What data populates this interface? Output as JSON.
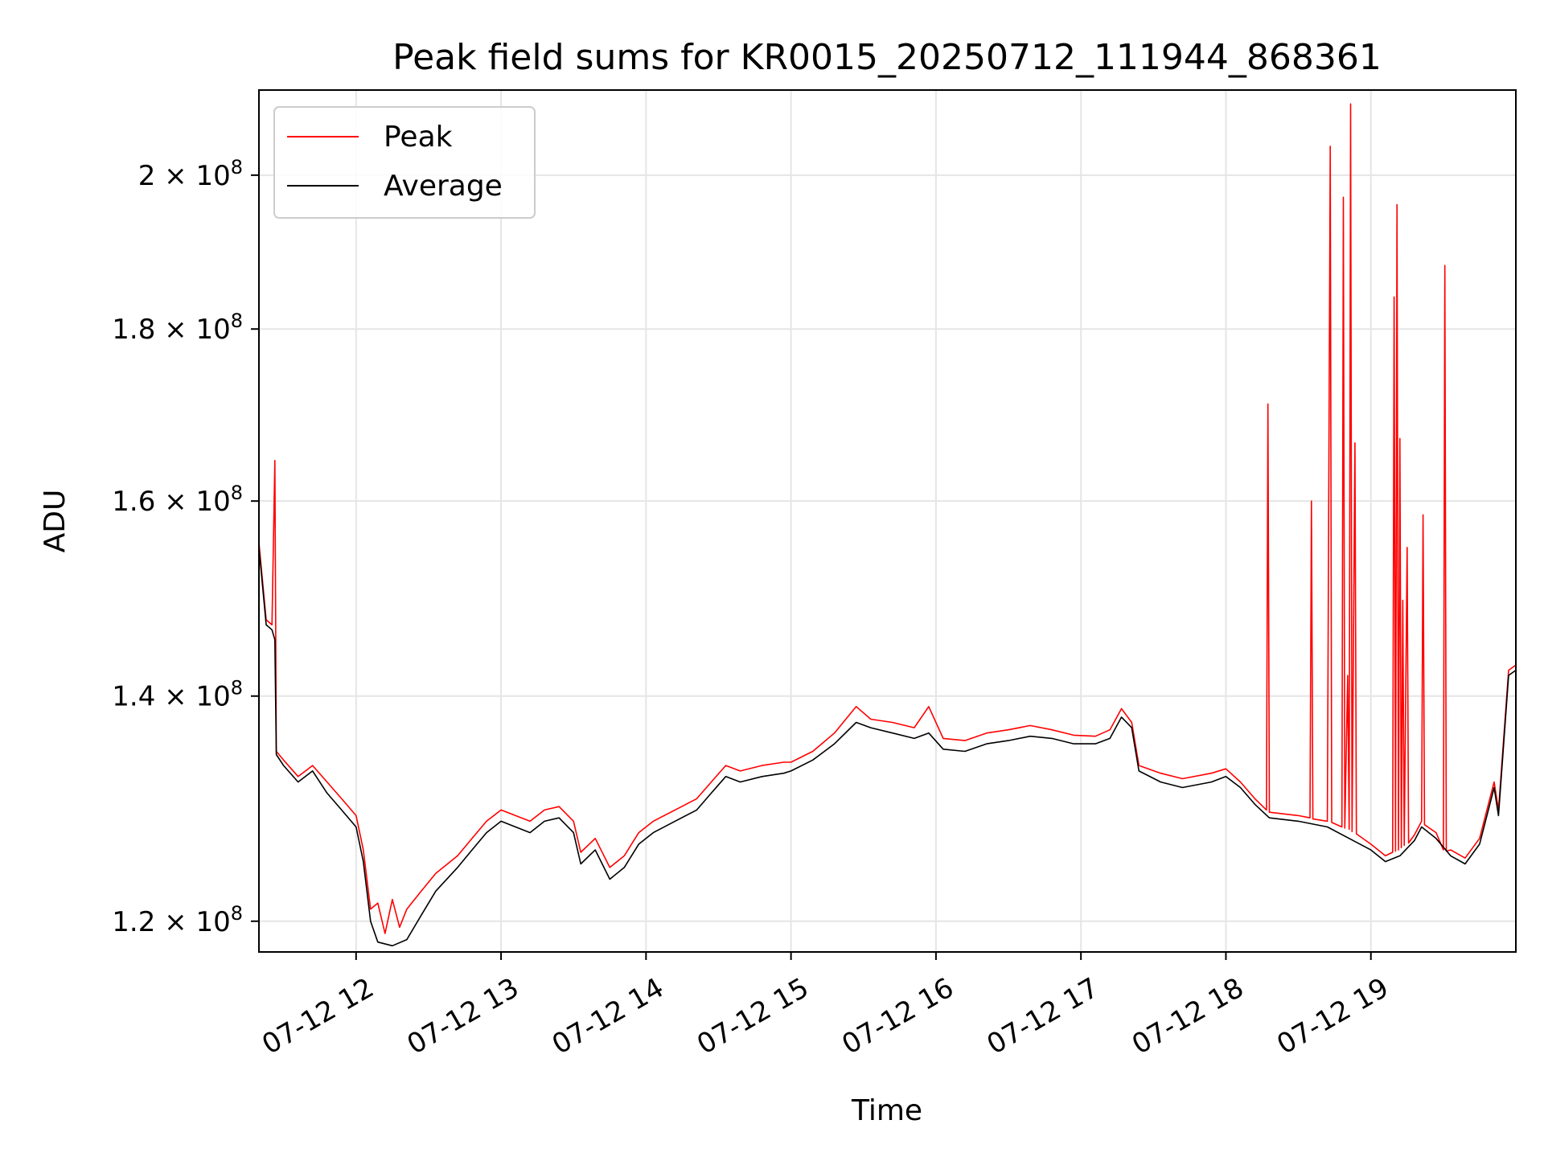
{
  "chart_data": {
    "type": "line",
    "title": "Peak field sums for KR0015_20250712_111944_868361",
    "xlabel": "Time",
    "ylabel": "ADU",
    "scale": {
      "x": "time",
      "y": "log"
    },
    "xlim_hours": [
      11.33,
      20.0
    ],
    "ylim": [
      117500000,
      212000000
    ],
    "grid": true,
    "legend_position": "upper-left",
    "x_ticks": [
      {
        "hour": 12,
        "label": "07-12 12"
      },
      {
        "hour": 13,
        "label": "07-12 13"
      },
      {
        "hour": 14,
        "label": "07-12 14"
      },
      {
        "hour": 15,
        "label": "07-12 15"
      },
      {
        "hour": 16,
        "label": "07-12 16"
      },
      {
        "hour": 17,
        "label": "07-12 17"
      },
      {
        "hour": 18,
        "label": "07-12 18"
      },
      {
        "hour": 19,
        "label": "07-12 19"
      }
    ],
    "y_ticks": [
      {
        "value": 120000000,
        "mantissa": "1.2",
        "exponent": "8"
      },
      {
        "value": 140000000,
        "mantissa": "1.4",
        "exponent": "8"
      },
      {
        "value": 160000000,
        "mantissa": "1.6",
        "exponent": "8"
      },
      {
        "value": 180000000,
        "mantissa": "1.8",
        "exponent": "8"
      },
      {
        "value": 200000000,
        "mantissa": "2",
        "exponent": "8"
      }
    ],
    "series": [
      {
        "name": "Average",
        "color": "#000000",
        "points": [
          [
            11.33,
            155000000
          ],
          [
            11.38,
            147000000
          ],
          [
            11.42,
            146500000
          ],
          [
            11.44,
            145500000
          ],
          [
            11.45,
            134500000
          ],
          [
            11.5,
            133500000
          ],
          [
            11.6,
            132000000
          ],
          [
            11.7,
            133000000
          ],
          [
            11.8,
            131000000
          ],
          [
            11.9,
            129500000
          ],
          [
            12.0,
            128000000
          ],
          [
            12.05,
            125000000
          ],
          [
            12.1,
            120000000
          ],
          [
            12.15,
            118300000
          ],
          [
            12.25,
            118000000
          ],
          [
            12.35,
            118500000
          ],
          [
            12.45,
            120500000
          ],
          [
            12.55,
            122500000
          ],
          [
            12.7,
            124500000
          ],
          [
            12.8,
            126000000
          ],
          [
            12.9,
            127500000
          ],
          [
            13.0,
            128500000
          ],
          [
            13.1,
            128000000
          ],
          [
            13.2,
            127500000
          ],
          [
            13.3,
            128500000
          ],
          [
            13.4,
            128800000
          ],
          [
            13.5,
            127500000
          ],
          [
            13.55,
            124800000
          ],
          [
            13.65,
            126000000
          ],
          [
            13.75,
            123500000
          ],
          [
            13.85,
            124500000
          ],
          [
            13.95,
            126500000
          ],
          [
            14.05,
            127500000
          ],
          [
            14.2,
            128500000
          ],
          [
            14.35,
            129500000
          ],
          [
            14.45,
            131000000
          ],
          [
            14.55,
            132500000
          ],
          [
            14.65,
            132000000
          ],
          [
            14.8,
            132500000
          ],
          [
            14.95,
            132800000
          ],
          [
            15.0,
            133000000
          ],
          [
            15.15,
            134000000
          ],
          [
            15.3,
            135500000
          ],
          [
            15.45,
            137500000
          ],
          [
            15.55,
            137000000
          ],
          [
            15.7,
            136500000
          ],
          [
            15.85,
            136000000
          ],
          [
            15.95,
            136500000
          ],
          [
            16.05,
            135000000
          ],
          [
            16.2,
            134800000
          ],
          [
            16.35,
            135500000
          ],
          [
            16.5,
            135800000
          ],
          [
            16.65,
            136200000
          ],
          [
            16.8,
            136000000
          ],
          [
            16.95,
            135500000
          ],
          [
            17.1,
            135500000
          ],
          [
            17.2,
            136000000
          ],
          [
            17.28,
            138000000
          ],
          [
            17.35,
            137000000
          ],
          [
            17.4,
            133000000
          ],
          [
            17.55,
            132000000
          ],
          [
            17.7,
            131500000
          ],
          [
            17.9,
            132000000
          ],
          [
            18.0,
            132500000
          ],
          [
            18.1,
            131500000
          ],
          [
            18.2,
            130000000
          ],
          [
            18.3,
            128800000
          ],
          [
            18.5,
            128500000
          ],
          [
            18.7,
            128000000
          ],
          [
            18.85,
            127000000
          ],
          [
            19.0,
            126000000
          ],
          [
            19.1,
            125000000
          ],
          [
            19.2,
            125500000
          ],
          [
            19.3,
            126800000
          ],
          [
            19.35,
            128000000
          ],
          [
            19.45,
            127000000
          ],
          [
            19.55,
            125500000
          ],
          [
            19.65,
            124800000
          ],
          [
            19.75,
            126500000
          ],
          [
            19.85,
            131500000
          ],
          [
            19.88,
            129000000
          ],
          [
            19.95,
            142000000
          ],
          [
            20.0,
            142500000
          ]
        ]
      },
      {
        "name": "Peak",
        "color": "#ff0000",
        "points": [
          [
            11.33,
            155500000
          ],
          [
            11.38,
            147500000
          ],
          [
            11.42,
            147000000
          ],
          [
            11.44,
            164500000
          ],
          [
            11.45,
            134800000
          ],
          [
            11.5,
            134000000
          ],
          [
            11.6,
            132500000
          ],
          [
            11.7,
            133500000
          ],
          [
            11.8,
            132000000
          ],
          [
            11.9,
            130500000
          ],
          [
            12.0,
            129000000
          ],
          [
            12.05,
            126000000
          ],
          [
            12.1,
            121000000
          ],
          [
            12.15,
            121500000
          ],
          [
            12.2,
            119000000
          ],
          [
            12.25,
            121800000
          ],
          [
            12.3,
            119500000
          ],
          [
            12.35,
            121000000
          ],
          [
            12.45,
            122500000
          ],
          [
            12.55,
            124000000
          ],
          [
            12.7,
            125500000
          ],
          [
            12.8,
            127000000
          ],
          [
            12.9,
            128500000
          ],
          [
            13.0,
            129500000
          ],
          [
            13.1,
            129000000
          ],
          [
            13.2,
            128500000
          ],
          [
            13.3,
            129500000
          ],
          [
            13.4,
            129800000
          ],
          [
            13.5,
            128500000
          ],
          [
            13.55,
            125800000
          ],
          [
            13.65,
            127000000
          ],
          [
            13.75,
            124500000
          ],
          [
            13.85,
            125500000
          ],
          [
            13.95,
            127500000
          ],
          [
            14.05,
            128500000
          ],
          [
            14.2,
            129500000
          ],
          [
            14.35,
            130500000
          ],
          [
            14.45,
            132000000
          ],
          [
            14.55,
            133500000
          ],
          [
            14.65,
            133000000
          ],
          [
            14.8,
            133500000
          ],
          [
            14.95,
            133800000
          ],
          [
            15.0,
            133800000
          ],
          [
            15.15,
            134800000
          ],
          [
            15.3,
            136500000
          ],
          [
            15.45,
            139000000
          ],
          [
            15.55,
            137800000
          ],
          [
            15.7,
            137500000
          ],
          [
            15.85,
            137000000
          ],
          [
            15.95,
            139000000
          ],
          [
            16.05,
            136000000
          ],
          [
            16.2,
            135800000
          ],
          [
            16.35,
            136500000
          ],
          [
            16.5,
            136800000
          ],
          [
            16.65,
            137200000
          ],
          [
            16.8,
            136800000
          ],
          [
            16.95,
            136300000
          ],
          [
            17.1,
            136200000
          ],
          [
            17.2,
            136800000
          ],
          [
            17.28,
            138800000
          ],
          [
            17.35,
            137500000
          ],
          [
            17.4,
            133500000
          ],
          [
            17.55,
            132800000
          ],
          [
            17.7,
            132300000
          ],
          [
            17.9,
            132800000
          ],
          [
            18.0,
            133200000
          ],
          [
            18.1,
            132000000
          ],
          [
            18.2,
            130500000
          ],
          [
            18.28,
            129500000
          ],
          [
            18.29,
            171000000
          ],
          [
            18.3,
            129300000
          ],
          [
            18.5,
            129000000
          ],
          [
            18.58,
            128800000
          ],
          [
            18.59,
            160000000
          ],
          [
            18.6,
            128700000
          ],
          [
            18.7,
            128500000
          ],
          [
            18.72,
            204000000
          ],
          [
            18.73,
            128400000
          ],
          [
            18.8,
            128000000
          ],
          [
            18.81,
            197000000
          ],
          [
            18.82,
            127900000
          ],
          [
            18.84,
            142000000
          ],
          [
            18.85,
            127800000
          ],
          [
            18.86,
            210000000
          ],
          [
            18.87,
            127600000
          ],
          [
            18.89,
            166500000
          ],
          [
            18.9,
            127400000
          ],
          [
            19.0,
            126500000
          ],
          [
            19.1,
            125500000
          ],
          [
            19.15,
            125800000
          ],
          [
            19.16,
            184000000
          ],
          [
            19.17,
            125900000
          ],
          [
            19.18,
            196000000
          ],
          [
            19.19,
            126000000
          ],
          [
            19.2,
            167000000
          ],
          [
            19.21,
            126200000
          ],
          [
            19.22,
            149500000
          ],
          [
            19.23,
            126400000
          ],
          [
            19.25,
            155000000
          ],
          [
            19.26,
            126600000
          ],
          [
            19.3,
            127300000
          ],
          [
            19.35,
            128500000
          ],
          [
            19.36,
            158500000
          ],
          [
            19.37,
            128200000
          ],
          [
            19.45,
            127500000
          ],
          [
            19.5,
            126000000
          ],
          [
            19.51,
            188000000
          ],
          [
            19.52,
            125900000
          ],
          [
            19.55,
            126000000
          ],
          [
            19.65,
            125300000
          ],
          [
            19.75,
            127000000
          ],
          [
            19.85,
            132000000
          ],
          [
            19.88,
            129500000
          ],
          [
            19.95,
            142500000
          ],
          [
            20.0,
            143000000
          ]
        ]
      }
    ]
  }
}
